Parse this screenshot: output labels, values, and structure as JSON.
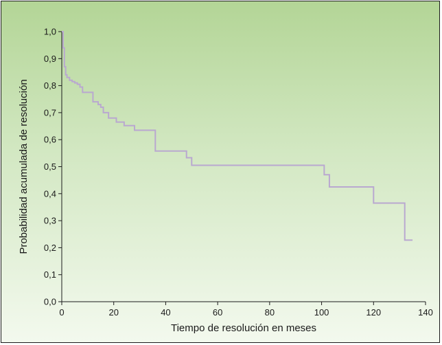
{
  "chart_data": {
    "type": "line",
    "step": true,
    "xlabel": "Tiempo de resolución en meses",
    "ylabel": "Probabilidad acumulada de resolución",
    "xlim": [
      0,
      140
    ],
    "ylim": [
      0,
      1
    ],
    "x_ticks": [
      "0",
      "20",
      "40",
      "60",
      "80",
      "100",
      "120",
      "140"
    ],
    "y_ticks": [
      "0,0",
      "0,1",
      "0,2",
      "0,3",
      "0,4",
      "0,5",
      "0,6",
      "0,7",
      "0,8",
      "0,9",
      "1,0"
    ],
    "grid": false,
    "line_color": "#b9a8d0",
    "series": [
      {
        "x": [
          0,
          0.5,
          1,
          1.5,
          2,
          3,
          4,
          5,
          6,
          7,
          8,
          12,
          14,
          15,
          16,
          18,
          21,
          24,
          28,
          36,
          48,
          50,
          98,
          101,
          103,
          120,
          132,
          135
        ],
        "y": [
          1.0,
          0.94,
          0.87,
          0.84,
          0.83,
          0.82,
          0.815,
          0.81,
          0.805,
          0.795,
          0.775,
          0.74,
          0.73,
          0.72,
          0.7,
          0.68,
          0.665,
          0.652,
          0.635,
          0.558,
          0.533,
          0.505,
          0.505,
          0.47,
          0.425,
          0.365,
          0.228,
          0.228
        ]
      }
    ]
  }
}
